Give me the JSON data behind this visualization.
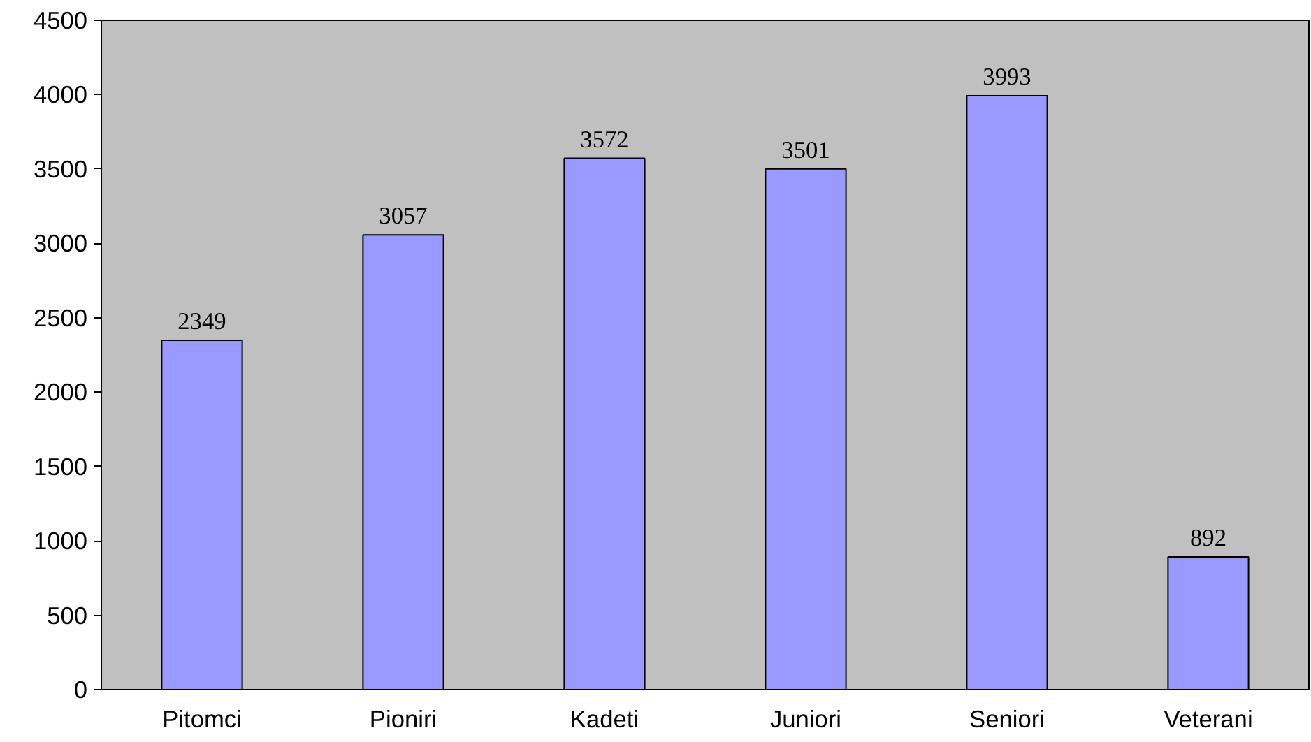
{
  "chart_data": {
    "type": "bar",
    "categories": [
      "Pitomci",
      "Pioniri",
      "Kadeti",
      "Juniori",
      "Seniori",
      "Veterani"
    ],
    "values": [
      2349,
      3057,
      3572,
      3501,
      3993,
      892
    ],
    "color": "#9999ff",
    "ylim": [
      0,
      4500
    ],
    "yticks": [
      0,
      500,
      1000,
      1500,
      2000,
      2500,
      3000,
      3500,
      4000,
      4500
    ],
    "data_labels": true
  }
}
